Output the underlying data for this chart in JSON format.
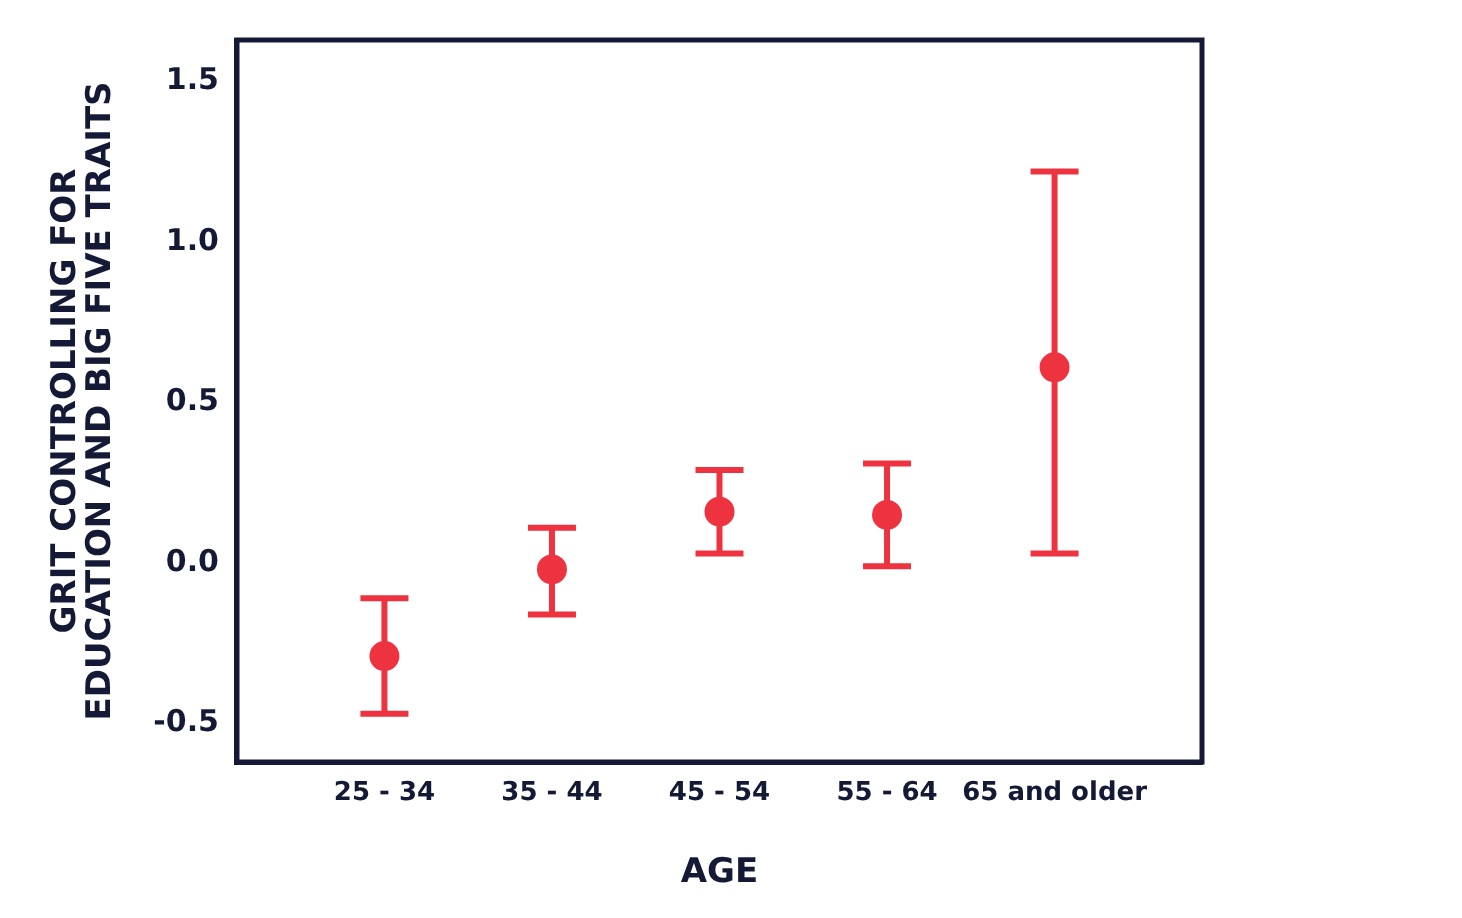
{
  "chart_data": {
    "type": "scatter",
    "xlabel": "AGE",
    "ylabel": "GRIT CONTROLLING FOR EDUCATION AND BIG FIVE TRAITS",
    "categories": [
      "25 - 34",
      "35 - 44",
      "45 - 54",
      "55 - 64",
      "65 and older"
    ],
    "values": [
      -0.29,
      -0.02,
      0.16,
      0.15,
      0.61
    ],
    "errors": [
      [
        -0.47,
        -0.11
      ],
      [
        -0.16,
        0.11
      ],
      [
        0.03,
        0.29
      ],
      [
        -0.01,
        0.31
      ],
      [
        0.03,
        1.22
      ]
    ],
    "color": "#ee3340",
    "marker": "circle",
    "ylim": [
      -0.62,
      1.63
    ],
    "yticks": [
      {
        "value": -0.5,
        "label": "-0.5"
      },
      {
        "value": 0,
        "label": "0.0"
      },
      {
        "value": 0.5,
        "label": "0.5"
      },
      {
        "value": 1,
        "label": "1.0"
      },
      {
        "value": 1.5,
        "label": "1.5"
      }
    ],
    "grid": false,
    "legend": false
  }
}
